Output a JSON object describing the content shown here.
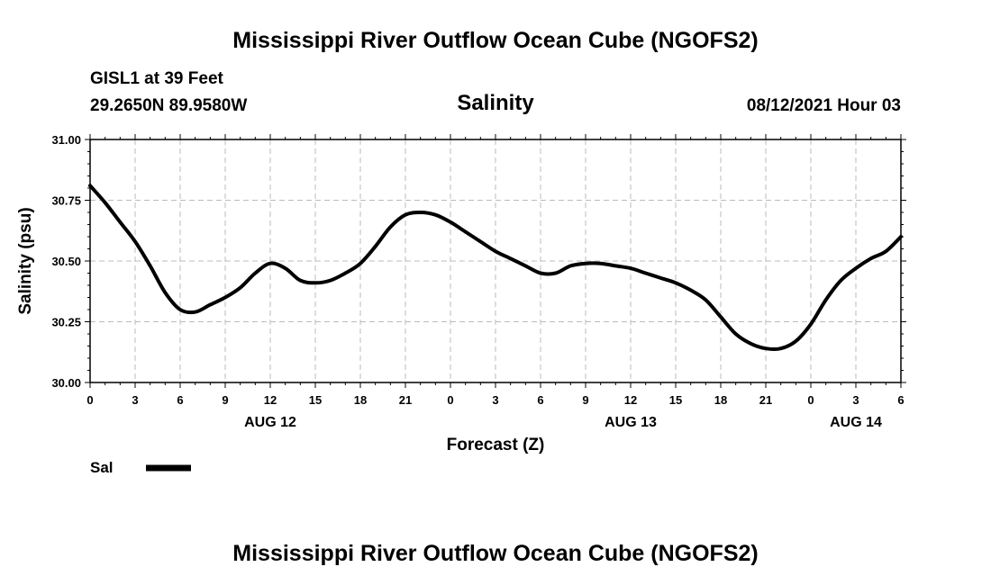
{
  "header": {
    "title_top": "Mississippi River Outflow Ocean Cube (NGOFS2)",
    "station": "GISL1 at 39 Feet",
    "coords": "29.2650N  89.9580W",
    "variable": "Salinity",
    "datetime": "08/12/2021 Hour 03",
    "title_bottom": "Mississippi River Outflow Ocean Cube (NGOFS2)"
  },
  "legend": {
    "label": "Sal",
    "color": "#000000"
  },
  "chart_data": {
    "type": "line",
    "title": "Salinity",
    "xlabel": "Forecast (Z)",
    "ylabel": "Salinity (psu)",
    "xlim": [
      0,
      54
    ],
    "ylim": [
      30.0,
      31.0
    ],
    "grid": true,
    "x_tick_values": [
      0,
      3,
      6,
      9,
      12,
      15,
      18,
      21,
      24,
      27,
      30,
      33,
      36,
      39,
      42,
      45,
      48,
      51,
      54
    ],
    "x_tick_labels": [
      "0",
      "3",
      "6",
      "9",
      "12",
      "15",
      "18",
      "21",
      "0",
      "3",
      "6",
      "9",
      "12",
      "15",
      "18",
      "21",
      "0",
      "3",
      "6"
    ],
    "y_tick_values": [
      30.0,
      30.25,
      30.5,
      30.75,
      31.0
    ],
    "y_tick_labels": [
      "30.00",
      "30.25",
      "30.50",
      "30.75",
      "31.00"
    ],
    "date_labels": [
      {
        "x": 12,
        "label": "AUG 12"
      },
      {
        "x": 36,
        "label": "AUG 13"
      },
      {
        "x": 51,
        "label": "AUG 14"
      }
    ],
    "series": [
      {
        "name": "Sal",
        "x": [
          0,
          1,
          2,
          3,
          4,
          5,
          6,
          7,
          8,
          9,
          10,
          11,
          12,
          13,
          14,
          15,
          16,
          17,
          18,
          19,
          20,
          21,
          22,
          23,
          24,
          25,
          26,
          27,
          28,
          29,
          30,
          31,
          32,
          33,
          34,
          35,
          36,
          37,
          38,
          39,
          40,
          41,
          42,
          43,
          44,
          45,
          46,
          47,
          48,
          49,
          50,
          51,
          52,
          53,
          54
        ],
        "values": [
          30.81,
          30.74,
          30.66,
          30.58,
          30.48,
          30.37,
          30.3,
          30.29,
          30.32,
          30.35,
          30.39,
          30.45,
          30.49,
          30.47,
          30.42,
          30.41,
          30.42,
          30.45,
          30.49,
          30.56,
          30.64,
          30.69,
          30.7,
          30.69,
          30.66,
          30.62,
          30.58,
          30.54,
          30.51,
          30.48,
          30.45,
          30.45,
          30.48,
          30.49,
          30.49,
          30.48,
          30.47,
          30.45,
          30.43,
          30.41,
          30.38,
          30.34,
          30.27,
          30.2,
          30.16,
          30.14,
          30.14,
          30.17,
          30.24,
          30.34,
          30.42,
          30.47,
          30.51,
          30.54,
          30.6
        ]
      }
    ]
  }
}
